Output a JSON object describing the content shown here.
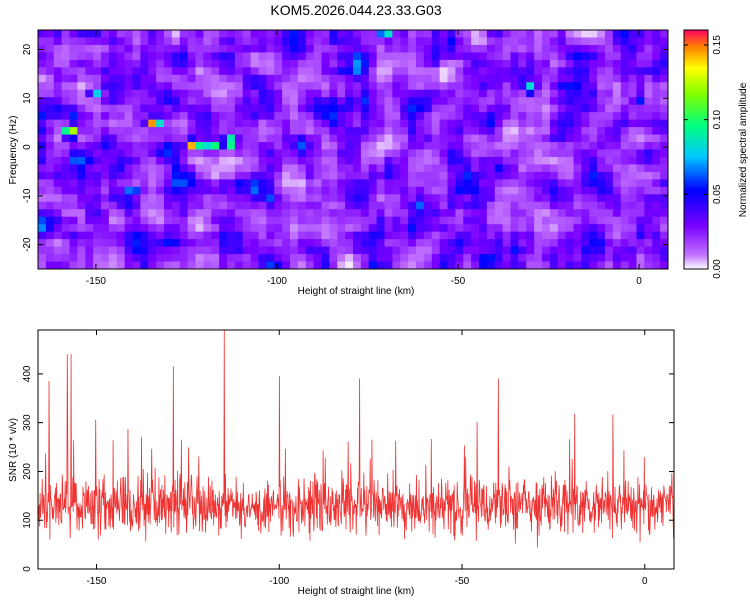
{
  "title": "KOM5.2026.044.23.33.G03",
  "chart_data": [
    {
      "type": "heatmap",
      "xlabel": "Height of straight line (km)",
      "ylabel": "Frequency (Hz)",
      "xlim": [
        -166,
        8
      ],
      "ylim": [
        -25,
        24
      ],
      "xticks": [
        -150,
        -100,
        -50,
        0
      ],
      "yticks": [
        -20,
        -10,
        0,
        10,
        20
      ],
      "colorbar": {
        "label": "Normalized spectral amplitude",
        "range": [
          0,
          0.16
        ],
        "ticks": [
          0.0,
          0.05,
          0.1,
          0.15
        ],
        "tick_labels": [
          "0.00",
          "0.05",
          "0.10",
          "0.15"
        ]
      },
      "hotspots": [
        {
          "x": -157,
          "y": 3,
          "v": 0.15
        },
        {
          "x": -134,
          "y": 5,
          "v": 0.155
        },
        {
          "x": -123,
          "y": 0.5,
          "v": 0.16
        },
        {
          "x": -118,
          "y": 0.5,
          "v": 0.12
        },
        {
          "x": -113,
          "y": 1,
          "v": 0.14
        },
        {
          "x": -140,
          "y": -9,
          "v": 0.08
        },
        {
          "x": -70,
          "y": 23,
          "v": 0.1
        },
        {
          "x": -30,
          "y": 12,
          "v": 0.1
        },
        {
          "x": 0,
          "y": 10,
          "v": 0.07
        },
        {
          "x": -150,
          "y": 11,
          "v": 0.08
        }
      ],
      "noise_level": 0.035
    },
    {
      "type": "line",
      "xlabel": "Height of straight line (km)",
      "ylabel": "SNR (10 * v/v)",
      "xlim": [
        -166,
        8
      ],
      "ylim": [
        0,
        490
      ],
      "xticks": [
        -150,
        -100,
        -50,
        0
      ],
      "yticks": [
        0,
        100,
        200,
        300,
        400
      ],
      "color": "#ee3333",
      "series": {
        "name": "SNR",
        "mean": 130,
        "spread": 55,
        "peaks": [
          {
            "x": -158,
            "y": 440
          },
          {
            "x": -157,
            "y": 440
          },
          {
            "x": -115,
            "y": 490
          },
          {
            "x": -129,
            "y": 415
          },
          {
            "x": -163,
            "y": 385
          },
          {
            "x": -100,
            "y": 395
          },
          {
            "x": -78,
            "y": 390
          },
          {
            "x": -40,
            "y": 390
          }
        ]
      }
    }
  ]
}
